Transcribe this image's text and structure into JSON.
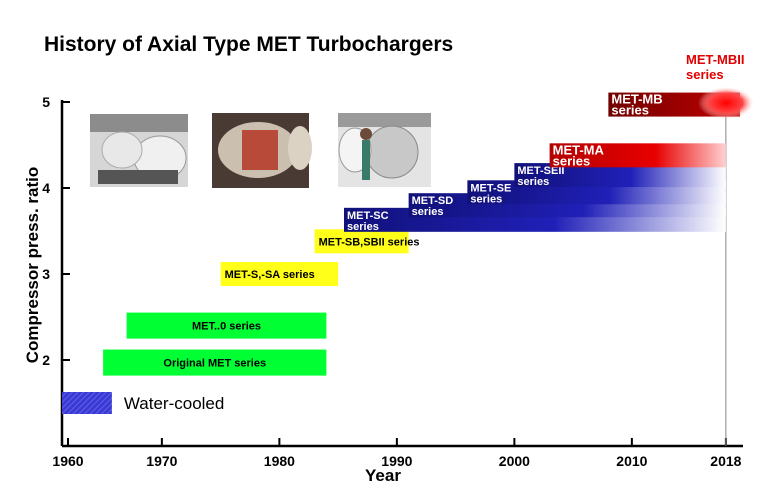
{
  "chart_data": {
    "type": "bar",
    "title": "History of Axial Type MET Turbochargers",
    "xlabel": "Year",
    "ylabel": "Compressor press. ratio",
    "xlim": [
      1960,
      2022
    ],
    "ylim": [
      1.0,
      5.0
    ],
    "x_ticks": [
      "1960",
      "1970",
      "1980",
      "1990",
      "2000",
      "2010",
      "2018"
    ],
    "y_ticks": [
      "2",
      "3",
      "4",
      "5"
    ],
    "legend": {
      "label": "Water-cooled",
      "x": [
        1960,
        1966
      ],
      "y": 1.5
    },
    "series": [
      {
        "name": "Original MET series",
        "x_start": 1965,
        "x_end": 1984,
        "y": 1.97,
        "color": "green"
      },
      {
        "name": "MET..0 series",
        "x_start": 1967,
        "x_end": 1984,
        "y": 2.4,
        "color": "green"
      },
      {
        "name": "MET-S,-SA series",
        "x_start": 1975,
        "x_end": 1985,
        "y": 3.0,
        "color": "yellow"
      },
      {
        "name": "MET-SB,SBII series",
        "x_start": 1983,
        "x_end": 1991,
        "y": 3.38,
        "color": "yellow"
      },
      {
        "name": "MET-SC series",
        "x_start": 1985.5,
        "x_end": 2018,
        "y": 3.63,
        "color": "blue"
      },
      {
        "name": "MET-SD series",
        "x_start": 1991,
        "x_end": 2018,
        "y": 3.8,
        "color": "blue"
      },
      {
        "name": "MET-SE series",
        "x_start": 1996,
        "x_end": 2018,
        "y": 3.95,
        "color": "blue"
      },
      {
        "name": "MET-SEII series",
        "x_start": 2000,
        "x_end": 2018,
        "y": 4.15,
        "color": "blue"
      },
      {
        "name": "MET-MA series",
        "x_start": 2003,
        "x_end": 2018,
        "y": 4.38,
        "color": "red"
      },
      {
        "name": "MET-MB series",
        "x_start": 2008,
        "x_end": 2022,
        "y": 4.97,
        "color": "red"
      },
      {
        "name": "MET-MBII series",
        "x_start": 2018,
        "x_end": 2022,
        "y": 5.35,
        "color": "red"
      }
    ]
  }
}
